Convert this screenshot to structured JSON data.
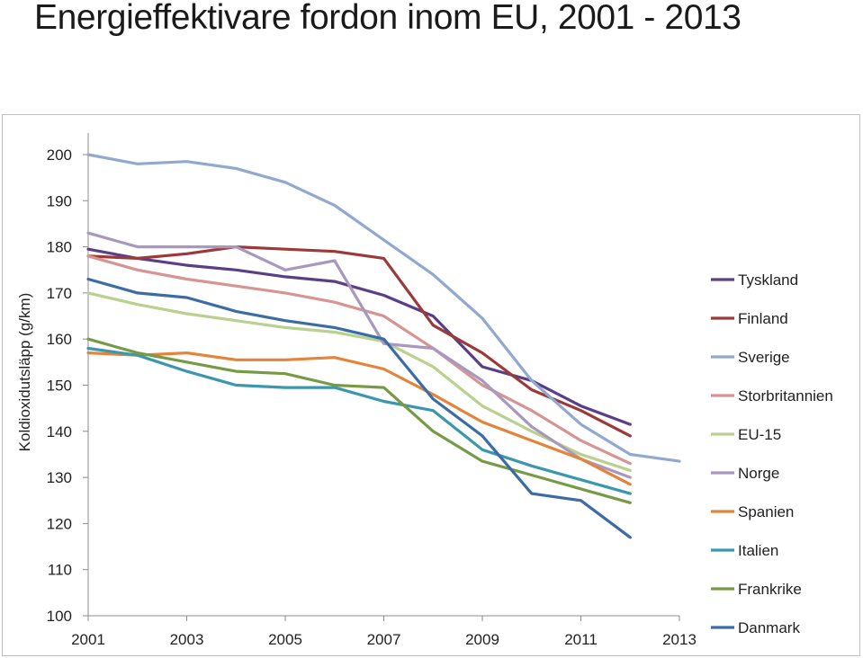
{
  "title": "Energieffektivare fordon inom EU, 2001 - 2013",
  "chart_data": {
    "type": "line",
    "title": "Energieffektivare fordon inom EU, 2001 - 2013",
    "xlabel": "",
    "ylabel": "Koldioxidutsläpp (g/km)",
    "xlim": [
      2001,
      2013
    ],
    "ylim": [
      100,
      200
    ],
    "x_ticks": [
      2001,
      2003,
      2005,
      2007,
      2009,
      2011,
      2013
    ],
    "x_tick_labels": [
      "2001",
      "2003",
      "2005",
      "2007",
      "2009",
      "2011",
      "2013"
    ],
    "y_ticks": [
      100,
      110,
      120,
      130,
      140,
      150,
      160,
      170,
      180,
      190,
      200
    ],
    "y_tick_labels": [
      "100",
      "110",
      "120",
      "130",
      "140",
      "150",
      "160",
      "170",
      "180",
      "190",
      "200"
    ],
    "grid": false,
    "legend_position": "right",
    "series": [
      {
        "name": "Tyskland",
        "color": "#5b3f86",
        "x": [
          2001,
          2002,
          2003,
          2004,
          2005,
          2006,
          2007,
          2008,
          2009,
          2010,
          2011,
          2012
        ],
        "y": [
          179.5,
          177.5,
          176,
          175,
          173.5,
          172.5,
          169.5,
          165,
          154,
          151,
          145.5,
          141.5
        ]
      },
      {
        "name": "Finland",
        "color": "#9b3a38",
        "x": [
          2001,
          2002,
          2003,
          2004,
          2005,
          2006,
          2007,
          2008,
          2009,
          2010,
          2011,
          2012
        ],
        "y": [
          178,
          177.5,
          178.5,
          180,
          179.5,
          179,
          177.5,
          163,
          157,
          149,
          144.5,
          139
        ]
      },
      {
        "name": "Sverige",
        "color": "#91a8cf",
        "x": [
          2001,
          2002,
          2003,
          2004,
          2005,
          2006,
          2007,
          2008,
          2009,
          2010,
          2011,
          2012,
          2013
        ],
        "y": [
          200,
          198,
          198.5,
          197,
          194,
          189,
          181.5,
          174,
          164.5,
          151,
          141.5,
          135,
          133.5
        ]
      },
      {
        "name": "Storbritannien",
        "color": "#d69593",
        "x": [
          2001,
          2002,
          2003,
          2004,
          2005,
          2006,
          2007,
          2008,
          2009,
          2010,
          2011,
          2012
        ],
        "y": [
          178,
          175,
          173,
          171.5,
          170,
          168,
          165,
          158,
          150,
          144.5,
          138,
          133
        ]
      },
      {
        "name": "EU-15",
        "color": "#b9d18e",
        "x": [
          2001,
          2002,
          2003,
          2004,
          2005,
          2006,
          2007,
          2008,
          2009,
          2010,
          2011,
          2012
        ],
        "y": [
          170,
          167.5,
          165.5,
          164,
          162.5,
          161.5,
          159.5,
          154,
          145.5,
          140,
          135,
          131.5
        ]
      },
      {
        "name": "Norge",
        "color": "#a898be",
        "x": [
          2001,
          2002,
          2003,
          2004,
          2005,
          2006,
          2007,
          2008,
          2009,
          2010,
          2011,
          2012
        ],
        "y": [
          183,
          180,
          180,
          180,
          175,
          177,
          159,
          158,
          151,
          141,
          134,
          130
        ]
      },
      {
        "name": "Spanien",
        "color": "#e4833a",
        "x": [
          2001,
          2002,
          2003,
          2004,
          2005,
          2006,
          2007,
          2008,
          2009,
          2010,
          2011,
          2012
        ],
        "y": [
          157,
          156.5,
          157,
          155.5,
          155.5,
          156,
          153.5,
          148,
          142,
          138,
          134,
          128.5
        ]
      },
      {
        "name": "Italien",
        "color": "#3a97ad",
        "x": [
          2001,
          2002,
          2003,
          2004,
          2005,
          2006,
          2007,
          2008,
          2009,
          2010,
          2011,
          2012
        ],
        "y": [
          158,
          156.5,
          153,
          150,
          149.5,
          149.5,
          146.5,
          144.5,
          136,
          132.5,
          129.5,
          126.5
        ]
      },
      {
        "name": "Frankrike",
        "color": "#779a45",
        "x": [
          2001,
          2002,
          2003,
          2004,
          2005,
          2006,
          2007,
          2008,
          2009,
          2010,
          2011,
          2012
        ],
        "y": [
          160,
          157,
          155,
          153,
          152.5,
          150,
          149.5,
          140,
          133.5,
          130.5,
          127.5,
          124.5
        ]
      },
      {
        "name": "Danmark",
        "color": "#3c6ca5",
        "x": [
          2001,
          2002,
          2003,
          2004,
          2005,
          2006,
          2007,
          2008,
          2009,
          2010,
          2011,
          2012
        ],
        "y": [
          173,
          170,
          169,
          166,
          164,
          162.5,
          160,
          147,
          139,
          126.5,
          125,
          117
        ]
      }
    ]
  }
}
